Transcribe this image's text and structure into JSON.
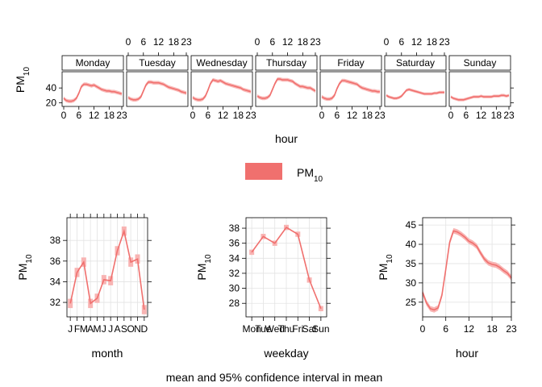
{
  "colors": {
    "line": "#f0706e",
    "band": "#f8b4b3",
    "strip": "#ffffff",
    "grid": "#e3e3e3"
  },
  "chart_data": [
    {
      "type": "line",
      "panel": "day-hour",
      "x": [
        0,
        1,
        2,
        3,
        4,
        5,
        6,
        7,
        8,
        9,
        10,
        11,
        12,
        13,
        14,
        15,
        16,
        17,
        18,
        19,
        20,
        21,
        22,
        23
      ],
      "xticks": [
        0,
        6,
        12,
        18,
        23
      ],
      "yticks": [
        20,
        40
      ],
      "ylim": [
        15,
        62
      ],
      "xlabel": "hour",
      "ylabel": "PM10",
      "series": [
        {
          "name": "Monday",
          "values": [
            26,
            23,
            22,
            22,
            23,
            26,
            33,
            42,
            45,
            45,
            44,
            43,
            44,
            42,
            40,
            38,
            37,
            36,
            36,
            35,
            35,
            34,
            33,
            32
          ],
          "ci": 2.5
        },
        {
          "name": "Tuesday",
          "values": [
            27,
            25,
            24,
            24,
            25,
            28,
            36,
            44,
            48,
            48,
            47,
            47,
            47,
            46,
            45,
            43,
            41,
            40,
            39,
            38,
            37,
            35,
            34,
            33
          ],
          "ci": 2.5
        },
        {
          "name": "Wednesday",
          "values": [
            27,
            25,
            24,
            24,
            25,
            29,
            37,
            46,
            51,
            50,
            49,
            50,
            48,
            46,
            45,
            44,
            43,
            42,
            41,
            40,
            38,
            37,
            36,
            35
          ],
          "ci": 2.5
        },
        {
          "name": "Thursday",
          "values": [
            29,
            27,
            26,
            26,
            27,
            30,
            38,
            46,
            52,
            52,
            51,
            51,
            51,
            50,
            49,
            46,
            44,
            42,
            42,
            41,
            40,
            40,
            38,
            36
          ],
          "ci": 2.5
        },
        {
          "name": "Friday",
          "values": [
            28,
            26,
            25,
            25,
            26,
            30,
            39,
            46,
            50,
            50,
            49,
            48,
            47,
            46,
            45,
            42,
            40,
            39,
            38,
            37,
            36,
            36,
            35,
            35
          ],
          "ci": 2.5
        },
        {
          "name": "Saturday",
          "values": [
            30,
            28,
            27,
            26,
            26,
            27,
            29,
            33,
            37,
            38,
            37,
            36,
            35,
            34,
            33,
            32,
            32,
            32,
            32,
            33,
            33,
            34,
            34,
            34
          ],
          "ci": 2.0
        },
        {
          "name": "Sunday",
          "values": [
            28,
            26,
            25,
            24,
            24,
            24,
            25,
            26,
            27,
            28,
            28,
            28,
            29,
            28,
            28,
            28,
            28,
            29,
            29,
            29,
            30,
            30,
            29,
            30
          ],
          "ci": 2.0
        }
      ]
    },
    {
      "type": "line",
      "panel": "month",
      "categories": [
        "J",
        "F",
        "M",
        "A",
        "M",
        "J",
        "J",
        "A",
        "S",
        "O",
        "N",
        "D"
      ],
      "series": [
        {
          "name": "PM10",
          "values": [
            31.9,
            34.9,
            35.9,
            31.9,
            32.4,
            34.2,
            34.1,
            37.0,
            38.9,
            35.9,
            36.2,
            31.3
          ]
        }
      ],
      "ci": 0.45,
      "yticks": [
        32,
        34,
        36,
        38
      ],
      "ylim": [
        30.6,
        40.2
      ],
      "xlabel": "month",
      "ylabel": "PM10"
    },
    {
      "type": "line",
      "panel": "weekday",
      "categories": [
        "Mon",
        "Tue",
        "Wed",
        "Thu",
        "Fri",
        "Sat",
        "Sun"
      ],
      "series": [
        {
          "name": "PM10",
          "values": [
            34.8,
            36.9,
            36.0,
            38.1,
            37.2,
            31.1,
            27.3
          ]
        }
      ],
      "ci": 0.35,
      "yticks": [
        28,
        30,
        32,
        34,
        36,
        38
      ],
      "ylim": [
        26.2,
        39.4
      ],
      "xlabel": "weekday",
      "ylabel": "PM10"
    },
    {
      "type": "line",
      "panel": "hour",
      "x": [
        0,
        1,
        2,
        3,
        4,
        5,
        6,
        7,
        8,
        9,
        10,
        11,
        12,
        13,
        14,
        15,
        16,
        17,
        18,
        19,
        20,
        21,
        22,
        23
      ],
      "series": [
        {
          "name": "PM10",
          "values": [
            27.5,
            24.8,
            23.3,
            23.0,
            23.5,
            26.8,
            33.5,
            40.5,
            43.5,
            43.2,
            42.6,
            41.8,
            40.8,
            40.3,
            39.5,
            37.8,
            36.2,
            35.2,
            34.8,
            34.6,
            34.0,
            33.2,
            32.5,
            31.3
          ]
        }
      ],
      "ci": 0.7,
      "xticks": [
        0,
        6,
        12,
        18,
        23
      ],
      "yticks": [
        25,
        30,
        35,
        40,
        45
      ],
      "ylim": [
        21.2,
        46.9
      ],
      "xlabel": "hour",
      "ylabel": "PM10"
    }
  ],
  "legend": {
    "label": "PM10"
  },
  "caption": "mean and 95% confidence interval in mean"
}
